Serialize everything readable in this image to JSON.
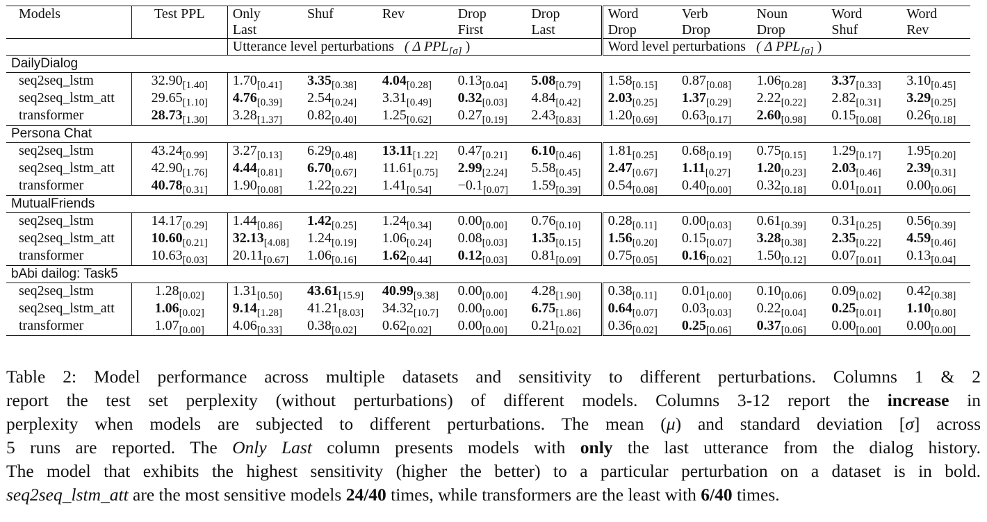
{
  "table": {
    "header": {
      "models": "Models",
      "test_ppl": "Test PPL",
      "columns": [
        {
          "line1": "Only",
          "line2": "Last"
        },
        {
          "line1": "Shuf",
          "line2": ""
        },
        {
          "line1": "Rev",
          "line2": ""
        },
        {
          "line1": "Drop",
          "line2": "First"
        },
        {
          "line1": "Drop",
          "line2": "Last"
        },
        {
          "line1": "Word",
          "line2": "Drop"
        },
        {
          "line1": "Verb",
          "line2": "Drop"
        },
        {
          "line1": "Noun",
          "line2": "Drop"
        },
        {
          "line1": "Word",
          "line2": "Shuf"
        },
        {
          "line1": "Word",
          "line2": "Rev"
        }
      ],
      "group_utterance": "Utterance level perturbations",
      "group_word": "Word level perturbations",
      "group_metric": "( Δ PPL",
      "group_metric_sub": "[σ]",
      "group_metric_close": ")"
    },
    "sections": [
      {
        "name": "DailyDialog",
        "rows": [
          {
            "model": "seq2seq_lstm",
            "cells": [
              {
                "m": "32.90",
                "s": "[1.40]",
                "b": false
              },
              {
                "m": "1.70",
                "s": "[0.41]",
                "b": false
              },
              {
                "m": "3.35",
                "s": "[0.38]",
                "b": true
              },
              {
                "m": "4.04",
                "s": "[0.28]",
                "b": true
              },
              {
                "m": "0.13",
                "s": "[0.04]",
                "b": false
              },
              {
                "m": "5.08",
                "s": "[0.79]",
                "b": true
              },
              {
                "m": "1.58",
                "s": "[0.15]",
                "b": false
              },
              {
                "m": "0.87",
                "s": "[0.08]",
                "b": false
              },
              {
                "m": "1.06",
                "s": "[0.28]",
                "b": false
              },
              {
                "m": "3.37",
                "s": "[0.33]",
                "b": true
              },
              {
                "m": "3.10",
                "s": "[0.45]",
                "b": false
              }
            ]
          },
          {
            "model": "seq2seq_lstm_att",
            "cells": [
              {
                "m": "29.65",
                "s": "[1.10]",
                "b": false
              },
              {
                "m": "4.76",
                "s": "[0.39]",
                "b": true
              },
              {
                "m": "2.54",
                "s": "[0.24]",
                "b": false
              },
              {
                "m": "3.31",
                "s": "[0.49]",
                "b": false
              },
              {
                "m": "0.32",
                "s": "[0.03]",
                "b": true
              },
              {
                "m": "4.84",
                "s": "[0.42]",
                "b": false
              },
              {
                "m": "2.03",
                "s": "[0.25]",
                "b": true
              },
              {
                "m": "1.37",
                "s": "[0.29]",
                "b": true
              },
              {
                "m": "2.22",
                "s": "[0.22]",
                "b": false
              },
              {
                "m": "2.82",
                "s": "[0.31]",
                "b": false
              },
              {
                "m": "3.29",
                "s": "[0.25]",
                "b": true
              }
            ]
          },
          {
            "model": "transformer",
            "cells": [
              {
                "m": "28.73",
                "s": "[1.30]",
                "b": true
              },
              {
                "m": "3.28",
                "s": "[1.37]",
                "b": false
              },
              {
                "m": "0.82",
                "s": "[0.40]",
                "b": false
              },
              {
                "m": "1.25",
                "s": "[0.62]",
                "b": false
              },
              {
                "m": "0.27",
                "s": "[0.19]",
                "b": false
              },
              {
                "m": "2.43",
                "s": "[0.83]",
                "b": false
              },
              {
                "m": "1.20",
                "s": "[0.69]",
                "b": false
              },
              {
                "m": "0.63",
                "s": "[0.17]",
                "b": false
              },
              {
                "m": "2.60",
                "s": "[0.98]",
                "b": true
              },
              {
                "m": "0.15",
                "s": "[0.08]",
                "b": false
              },
              {
                "m": "0.26",
                "s": "[0.18]",
                "b": false
              }
            ]
          }
        ]
      },
      {
        "name": "Persona Chat",
        "rows": [
          {
            "model": "seq2seq_lstm",
            "cells": [
              {
                "m": "43.24",
                "s": "[0.99]",
                "b": false
              },
              {
                "m": "3.27",
                "s": "[0.13]",
                "b": false
              },
              {
                "m": "6.29",
                "s": "[0.48]",
                "b": false
              },
              {
                "m": "13.11",
                "s": "[1.22]",
                "b": true
              },
              {
                "m": "0.47",
                "s": "[0.21]",
                "b": false
              },
              {
                "m": "6.10",
                "s": "[0.46]",
                "b": true
              },
              {
                "m": "1.81",
                "s": "[0.25]",
                "b": false
              },
              {
                "m": "0.68",
                "s": "[0.19]",
                "b": false
              },
              {
                "m": "0.75",
                "s": "[0.15]",
                "b": false
              },
              {
                "m": "1.29",
                "s": "[0.17]",
                "b": false
              },
              {
                "m": "1.95",
                "s": "[0.20]",
                "b": false
              }
            ]
          },
          {
            "model": "seq2seq_lstm_att",
            "cells": [
              {
                "m": "42.90",
                "s": "[1.76]",
                "b": false
              },
              {
                "m": "4.44",
                "s": "[0.81]",
                "b": true
              },
              {
                "m": "6.70",
                "s": "[0.67]",
                "b": true
              },
              {
                "m": "11.61",
                "s": "[0.75]",
                "b": false
              },
              {
                "m": "2.99",
                "s": "[2.24]",
                "b": true
              },
              {
                "m": "5.58",
                "s": "[0.45]",
                "b": false
              },
              {
                "m": "2.47",
                "s": "[0.67]",
                "b": true
              },
              {
                "m": "1.11",
                "s": "[0.27]",
                "b": true
              },
              {
                "m": "1.20",
                "s": "[0.23]",
                "b": true
              },
              {
                "m": "2.03",
                "s": "[0.46]",
                "b": true
              },
              {
                "m": "2.39",
                "s": "[0.31]",
                "b": true
              }
            ]
          },
          {
            "model": "transformer",
            "cells": [
              {
                "m": "40.78",
                "s": "[0.31]",
                "b": true
              },
              {
                "m": "1.90",
                "s": "[0.08]",
                "b": false
              },
              {
                "m": "1.22",
                "s": "[0.22]",
                "b": false
              },
              {
                "m": "1.41",
                "s": "[0.54]",
                "b": false
              },
              {
                "m": "−0.1",
                "s": "[0.07]",
                "b": false
              },
              {
                "m": "1.59",
                "s": "[0.39]",
                "b": false
              },
              {
                "m": "0.54",
                "s": "[0.08]",
                "b": false
              },
              {
                "m": "0.40",
                "s": "[0.00]",
                "b": false
              },
              {
                "m": "0.32",
                "s": "[0.18]",
                "b": false
              },
              {
                "m": "0.01",
                "s": "[0.01]",
                "b": false
              },
              {
                "m": "0.00",
                "s": "[0.06]",
                "b": false
              }
            ]
          }
        ]
      },
      {
        "name": "MutualFriends",
        "rows": [
          {
            "model": "seq2seq_lstm",
            "cells": [
              {
                "m": "14.17",
                "s": "[0.29]",
                "b": false
              },
              {
                "m": "1.44",
                "s": "[0.86]",
                "b": false
              },
              {
                "m": "1.42",
                "s": "[0.25]",
                "b": true
              },
              {
                "m": "1.24",
                "s": "[0.34]",
                "b": false
              },
              {
                "m": "0.00",
                "s": "[0.00]",
                "b": false
              },
              {
                "m": "0.76",
                "s": "[0.10]",
                "b": false
              },
              {
                "m": "0.28",
                "s": "[0.11]",
                "b": false
              },
              {
                "m": "0.00",
                "s": "[0.03]",
                "b": false
              },
              {
                "m": "0.61",
                "s": "[0.39]",
                "b": false
              },
              {
                "m": "0.31",
                "s": "[0.25]",
                "b": false
              },
              {
                "m": "0.56",
                "s": "[0.39]",
                "b": false
              }
            ]
          },
          {
            "model": "seq2seq_lstm_att",
            "cells": [
              {
                "m": "10.60",
                "s": "[0.21]",
                "b": true
              },
              {
                "m": "32.13",
                "s": "[4.08]",
                "b": true
              },
              {
                "m": "1.24",
                "s": "[0.19]",
                "b": false
              },
              {
                "m": "1.06",
                "s": "[0.24]",
                "b": false
              },
              {
                "m": "0.08",
                "s": "[0.03]",
                "b": false
              },
              {
                "m": "1.35",
                "s": "[0.15]",
                "b": true
              },
              {
                "m": "1.56",
                "s": "[0.20]",
                "b": true
              },
              {
                "m": "0.15",
                "s": "[0.07]",
                "b": false
              },
              {
                "m": "3.28",
                "s": "[0.38]",
                "b": true
              },
              {
                "m": "2.35",
                "s": "[0.22]",
                "b": true
              },
              {
                "m": "4.59",
                "s": "[0.46]",
                "b": true
              }
            ]
          },
          {
            "model": "transformer",
            "cells": [
              {
                "m": "10.63",
                "s": "[0.03]",
                "b": false
              },
              {
                "m": "20.11",
                "s": "[0.67]",
                "b": false
              },
              {
                "m": "1.06",
                "s": "[0.16]",
                "b": false
              },
              {
                "m": "1.62",
                "s": "[0.44]",
                "b": true
              },
              {
                "m": "0.12",
                "s": "[0.03]",
                "b": true
              },
              {
                "m": "0.81",
                "s": "[0.09]",
                "b": false
              },
              {
                "m": "0.75",
                "s": "[0.05]",
                "b": false
              },
              {
                "m": "0.16",
                "s": "[0.02]",
                "b": true
              },
              {
                "m": "1.50",
                "s": "[0.12]",
                "b": false
              },
              {
                "m": "0.07",
                "s": "[0.01]",
                "b": false
              },
              {
                "m": "0.13",
                "s": "[0.04]",
                "b": false
              }
            ]
          }
        ]
      },
      {
        "name": "bAbi dailog: Task5",
        "rows": [
          {
            "model": "seq2seq_lstm",
            "cells": [
              {
                "m": "1.28",
                "s": "[0.02]",
                "b": false
              },
              {
                "m": "1.31",
                "s": "[0.50]",
                "b": false
              },
              {
                "m": "43.61",
                "s": "[15.9]",
                "b": true
              },
              {
                "m": "40.99",
                "s": "[9.38]",
                "b": true
              },
              {
                "m": "0.00",
                "s": "[0.00]",
                "b": false
              },
              {
                "m": "4.28",
                "s": "[1.90]",
                "b": false
              },
              {
                "m": "0.38",
                "s": "[0.11]",
                "b": false
              },
              {
                "m": "0.01",
                "s": "[0.00]",
                "b": false
              },
              {
                "m": "0.10",
                "s": "[0.06]",
                "b": false
              },
              {
                "m": "0.09",
                "s": "[0.02]",
                "b": false
              },
              {
                "m": "0.42",
                "s": "[0.38]",
                "b": false
              }
            ]
          },
          {
            "model": "seq2seq_lstm_att",
            "cells": [
              {
                "m": "1.06",
                "s": "[0.02]",
                "b": true
              },
              {
                "m": "9.14",
                "s": "[1.28]",
                "b": true
              },
              {
                "m": "41.21",
                "s": "[8.03]",
                "b": false
              },
              {
                "m": "34.32",
                "s": "[10.7]",
                "b": false
              },
              {
                "m": "0.00",
                "s": "[0.00]",
                "b": false
              },
              {
                "m": "6.75",
                "s": "[1.86]",
                "b": true
              },
              {
                "m": "0.64",
                "s": "[0.07]",
                "b": true
              },
              {
                "m": "0.03",
                "s": "[0.03]",
                "b": false
              },
              {
                "m": "0.22",
                "s": "[0.04]",
                "b": false
              },
              {
                "m": "0.25",
                "s": "[0.01]",
                "b": true
              },
              {
                "m": "1.10",
                "s": "[0.80]",
                "b": true
              }
            ]
          },
          {
            "model": "transformer",
            "cells": [
              {
                "m": "1.07",
                "s": "[0.00]",
                "b": false
              },
              {
                "m": "4.06",
                "s": "[0.33]",
                "b": false
              },
              {
                "m": "0.38",
                "s": "[0.02]",
                "b": false
              },
              {
                "m": "0.62",
                "s": "[0.02]",
                "b": false
              },
              {
                "m": "0.00",
                "s": "[0.00]",
                "b": false
              },
              {
                "m": "0.21",
                "s": "[0.02]",
                "b": false
              },
              {
                "m": "0.36",
                "s": "[0.02]",
                "b": false
              },
              {
                "m": "0.25",
                "s": "[0.06]",
                "b": true
              },
              {
                "m": "0.37",
                "s": "[0.06]",
                "b": true
              },
              {
                "m": "0.00",
                "s": "[0.00]",
                "b": false
              },
              {
                "m": "0.00",
                "s": "[0.00]",
                "b": false
              }
            ]
          }
        ]
      }
    ]
  },
  "caption": {
    "l1": [
      "Table 2: Model performance across multiple datasets and sensitivity to different perturbations. Columns 1 & 2"
    ],
    "l2": [
      "report the test set perplexity (without perturbations) of different models. Columns 3-12 report the ",
      "increase",
      " in"
    ],
    "l3": [
      "perplexity when models are subjected to different perturbations. The mean (",
      "μ",
      ") and standard deviation [",
      "σ",
      "] across"
    ],
    "l4": [
      "5 runs are reported. The ",
      "Only Last",
      " column presents models with ",
      "only",
      " the last utterance from the dialog history."
    ],
    "l5": [
      "The model that exhibits the highest sensitivity (higher the better) to a particular perturbation on a dataset is in bold."
    ],
    "l6": [
      "seq2seq_lstm_att",
      " are the most sensitive models ",
      "24/40",
      " times, while transformers are the least with ",
      "6/40",
      " times."
    ]
  }
}
